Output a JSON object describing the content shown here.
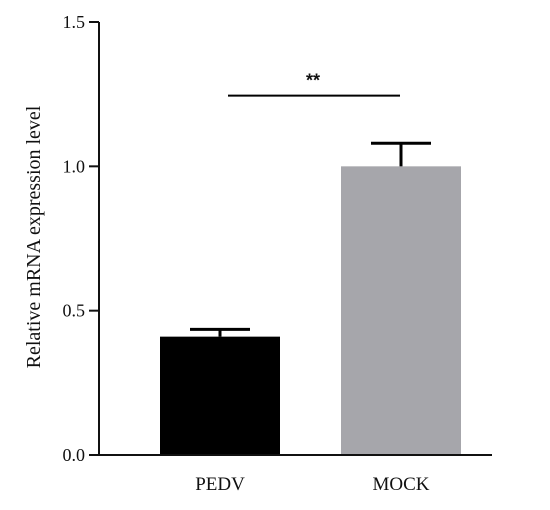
{
  "chart_data": {
    "type": "bar",
    "title": "",
    "xlabel": "",
    "ylabel": "Relative mRNA expression level",
    "ylim": [
      0,
      1.5
    ],
    "yticks": [
      "0.0",
      "0.5",
      "1.0",
      "1.5"
    ],
    "categories": [
      "PEDV",
      "MOCK"
    ],
    "values": [
      0.41,
      1.0
    ],
    "error": [
      0.025,
      0.08
    ],
    "colors": [
      "#000000",
      "#a6a6ab"
    ],
    "significance": {
      "label": "**",
      "between": [
        "PEDV",
        "MOCK"
      ],
      "y": 1.245
    },
    "grid": false,
    "legend": "none"
  }
}
